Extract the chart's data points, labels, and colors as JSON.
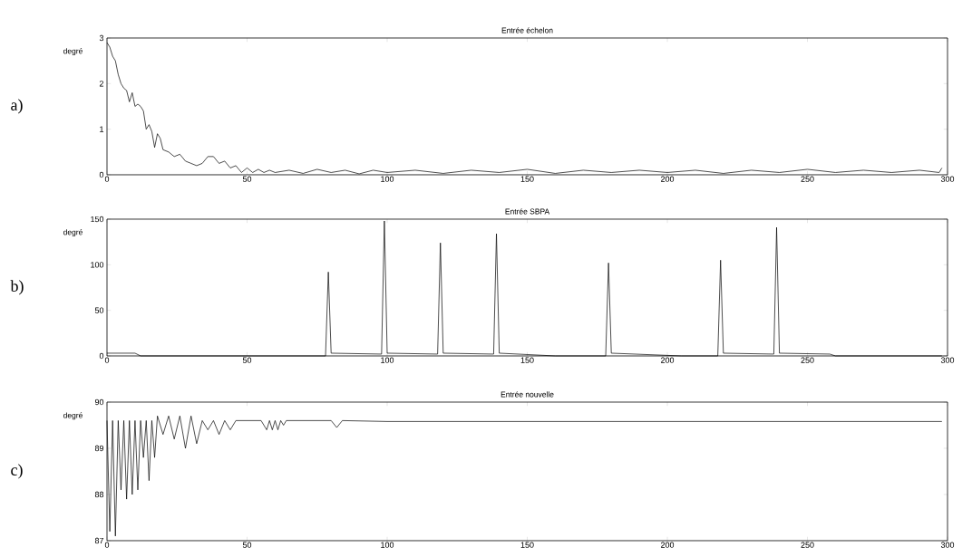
{
  "chart_data": [
    {
      "type": "line",
      "title": "Entrée échelon",
      "ylabel": "degré",
      "annotations": [
        "a)"
      ],
      "color": "#000000",
      "x": [
        0,
        1,
        2,
        3,
        4,
        5,
        6,
        7,
        8,
        9,
        10,
        11,
        12,
        13,
        14,
        15,
        16,
        17,
        18,
        19,
        20,
        22,
        24,
        26,
        28,
        30,
        32,
        34,
        36,
        38,
        40,
        42,
        44,
        46,
        48,
        50,
        52,
        54,
        56,
        58,
        60,
        65,
        70,
        75,
        80,
        85,
        90,
        95,
        100,
        110,
        120,
        130,
        140,
        150,
        160,
        170,
        180,
        190,
        200,
        210,
        220,
        230,
        240,
        250,
        260,
        270,
        280,
        290,
        297,
        298
      ],
      "values": [
        2.9,
        2.8,
        2.6,
        2.5,
        2.2,
        2.0,
        1.9,
        1.85,
        1.6,
        1.8,
        1.5,
        1.55,
        1.5,
        1.4,
        1.0,
        1.1,
        0.95,
        0.6,
        0.9,
        0.8,
        0.55,
        0.5,
        0.4,
        0.45,
        0.3,
        0.25,
        0.2,
        0.25,
        0.4,
        0.4,
        0.25,
        0.3,
        0.15,
        0.2,
        0.05,
        0.15,
        0.05,
        0.12,
        0.05,
        0.1,
        0.05,
        0.1,
        0.03,
        0.12,
        0.05,
        0.1,
        0.02,
        0.1,
        0.05,
        0.1,
        0.03,
        0.1,
        0.05,
        0.12,
        0.03,
        0.1,
        0.05,
        0.1,
        0.05,
        0.1,
        0.03,
        0.1,
        0.05,
        0.12,
        0.05,
        0.1,
        0.05,
        0.1,
        0.05,
        0.15
      ],
      "xlim": [
        0,
        300
      ],
      "ylim": [
        0,
        3
      ],
      "xticks": [
        0,
        50,
        100,
        150,
        200,
        250,
        300
      ],
      "yticks": [
        0,
        1,
        2,
        3
      ]
    },
    {
      "type": "line",
      "title": "Entrée SBPA",
      "ylabel": "degré",
      "annotations": [
        "b)"
      ],
      "color": "#000000",
      "x": [
        0,
        10,
        12,
        78,
        79,
        80,
        98,
        99,
        100,
        118,
        119,
        120,
        138,
        139,
        140,
        160,
        178,
        179,
        180,
        205,
        218,
        219,
        220,
        238,
        239,
        240,
        258,
        260,
        298
      ],
      "values": [
        3,
        3,
        0,
        0,
        92,
        3,
        2,
        148,
        3,
        2,
        124,
        3,
        2,
        134,
        3,
        0,
        0,
        102,
        3,
        0,
        0,
        105,
        3,
        2,
        141,
        3,
        2,
        0,
        0
      ],
      "xlim": [
        0,
        300
      ],
      "ylim": [
        0,
        150
      ],
      "xticks": [
        0,
        50,
        100,
        150,
        200,
        250,
        300
      ],
      "yticks": [
        0,
        50,
        100,
        150
      ]
    },
    {
      "type": "line",
      "title": "Entrée nouvelle",
      "ylabel": "degré",
      "annotations": [
        "c)"
      ],
      "color": "#000000",
      "x": [
        0,
        1,
        2,
        3,
        4,
        5,
        6,
        7,
        8,
        9,
        10,
        11,
        12,
        13,
        14,
        15,
        16,
        17,
        18,
        20,
        22,
        24,
        26,
        28,
        30,
        32,
        34,
        36,
        38,
        40,
        42,
        44,
        46,
        48,
        55,
        57,
        58,
        59,
        60,
        61,
        62,
        63,
        64,
        65,
        80,
        82,
        84,
        100,
        150,
        255,
        298
      ],
      "values": [
        89.6,
        87.2,
        89.6,
        87.1,
        89.6,
        88.1,
        89.6,
        87.9,
        89.6,
        88.0,
        89.6,
        88.1,
        89.6,
        88.8,
        89.6,
        88.3,
        89.6,
        88.8,
        89.7,
        89.3,
        89.7,
        89.2,
        89.7,
        89.0,
        89.7,
        89.1,
        89.6,
        89.4,
        89.6,
        89.3,
        89.6,
        89.4,
        89.6,
        89.6,
        89.6,
        89.4,
        89.6,
        89.4,
        89.6,
        89.4,
        89.6,
        89.5,
        89.6,
        89.6,
        89.6,
        89.45,
        89.6,
        89.58,
        89.58,
        89.58,
        89.58
      ],
      "xlim": [
        0,
        300
      ],
      "ylim": [
        87,
        90
      ],
      "xticks": [
        0,
        50,
        100,
        150,
        200,
        250,
        300
      ],
      "yticks": [
        87,
        88,
        89,
        90
      ]
    }
  ]
}
